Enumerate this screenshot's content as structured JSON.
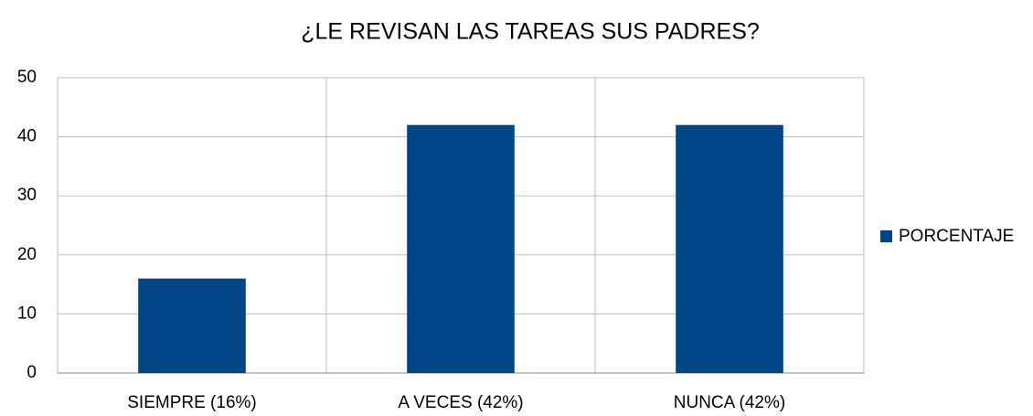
{
  "chart_data": {
    "type": "bar",
    "title": "¿LE REVISAN LAS TAREAS SUS PADRES?",
    "categories": [
      "SIEMPRE (16%)",
      "A VECES (42%)",
      "NUNCA (42%)"
    ],
    "series": [
      {
        "name": "PORCENTAJE",
        "color": "#004586",
        "values": [
          16,
          42,
          42
        ]
      }
    ],
    "ylim": [
      0,
      50
    ],
    "yticks": [
      0,
      10,
      20,
      30,
      40,
      50
    ],
    "grid": true,
    "legend": "right"
  }
}
